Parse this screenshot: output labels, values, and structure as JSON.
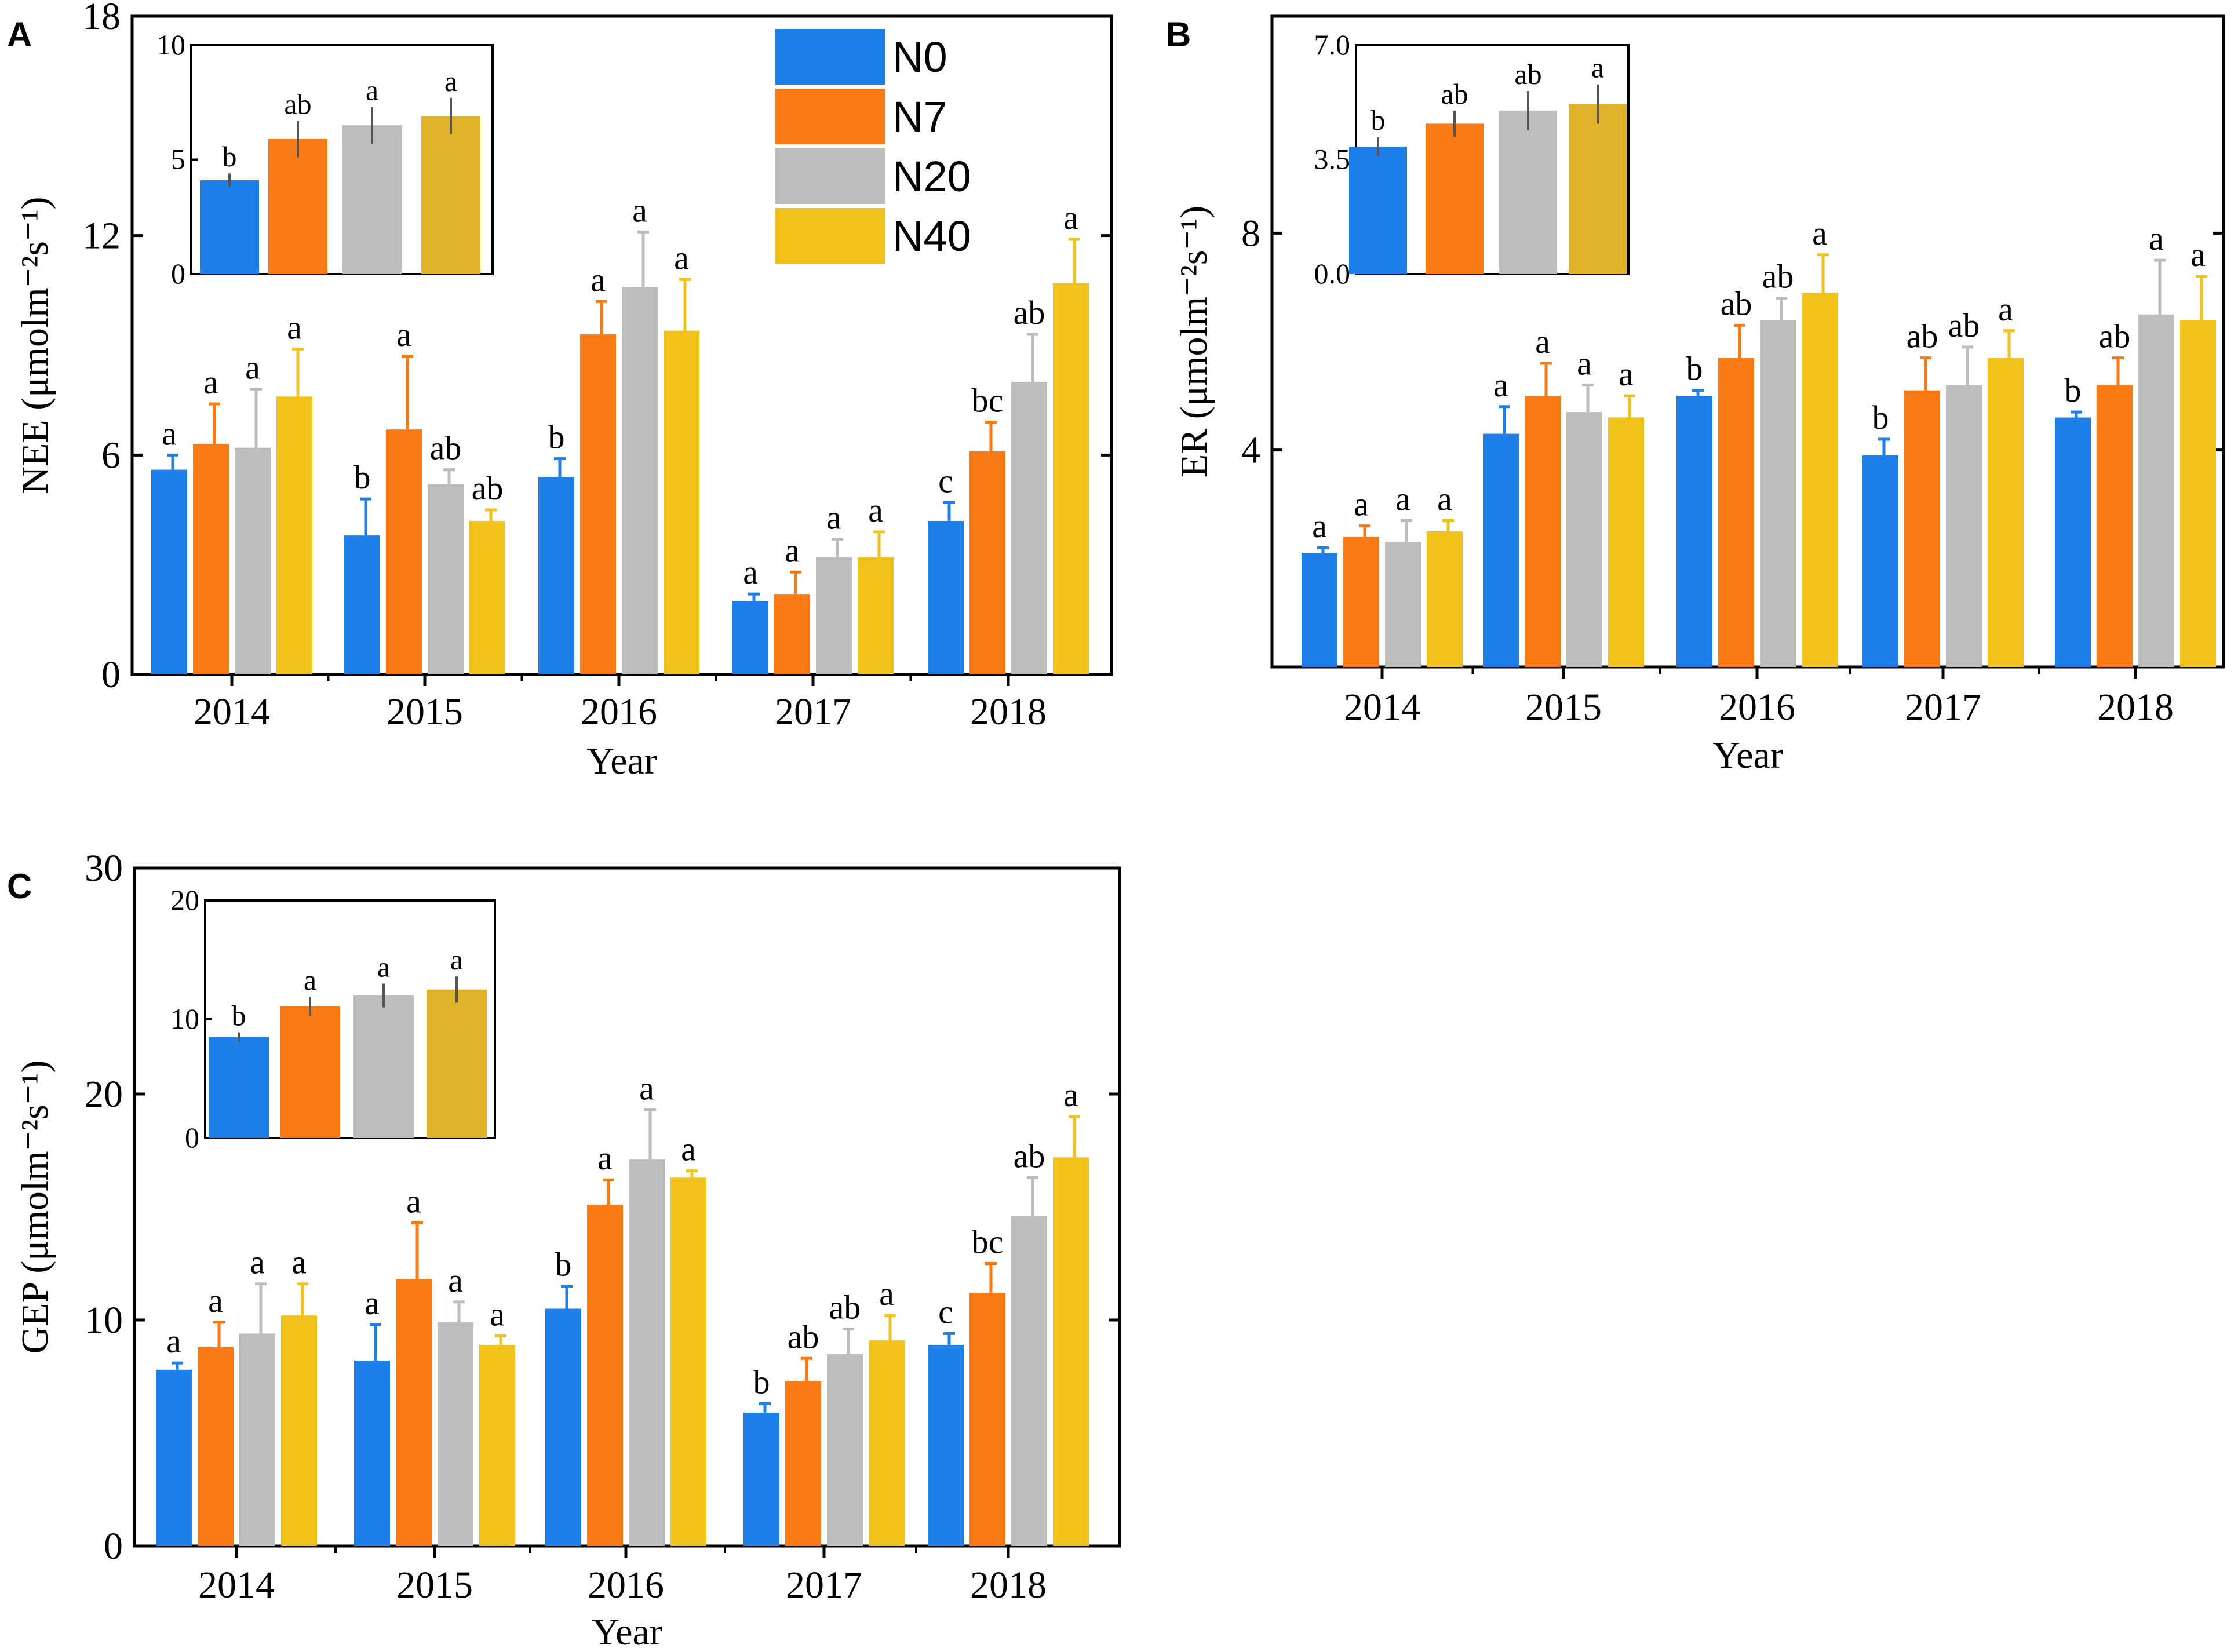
{
  "colors": {
    "N0": "#1f7fe8",
    "N7": "#f97a14",
    "N20": "#bdbdbd",
    "N40": "#f1c21b",
    "N40_inset": "#e0b12a"
  },
  "legend": [
    "N0",
    "N7",
    "N20",
    "N40"
  ],
  "chart_data": [
    {
      "panel": "A",
      "type": "bar",
      "title": "",
      "xlabel": "Year",
      "ylabel": "NEE (μmolm⁻²s⁻¹)",
      "ylim": [
        0,
        18
      ],
      "yticks": [
        "0",
        "6",
        "12",
        "18"
      ],
      "categories": [
        "2014",
        "2015",
        "2016",
        "2017",
        "2018"
      ],
      "series": [
        {
          "name": "N0",
          "values": [
            5.6,
            3.8,
            5.4,
            2.0,
            4.2
          ],
          "errors": [
            0.4,
            1.0,
            0.5,
            0.2,
            0.5
          ],
          "labels": [
            "a",
            "b",
            "b",
            "a",
            "c"
          ]
        },
        {
          "name": "N7",
          "values": [
            6.3,
            6.7,
            9.3,
            2.2,
            6.1
          ],
          "errors": [
            1.1,
            2.0,
            0.9,
            0.6,
            0.8
          ],
          "labels": [
            "a",
            "a",
            "a",
            "a",
            "bc"
          ]
        },
        {
          "name": "N20",
          "values": [
            6.2,
            5.2,
            10.6,
            3.2,
            8.0
          ],
          "errors": [
            1.6,
            0.4,
            1.5,
            0.5,
            1.3
          ],
          "labels": [
            "a",
            "ab",
            "a",
            "a",
            "ab"
          ]
        },
        {
          "name": "N40",
          "values": [
            7.6,
            4.2,
            9.4,
            3.2,
            10.7
          ],
          "errors": [
            1.3,
            0.3,
            1.4,
            0.7,
            1.2
          ],
          "labels": [
            "a",
            "ab",
            "a",
            "a",
            "a"
          ]
        }
      ],
      "inset": {
        "ylim": [
          0,
          10
        ],
        "yticks": [
          "0",
          "5",
          "10"
        ],
        "values": [
          4.1,
          5.9,
          6.5,
          6.9
        ],
        "errors": [
          0.3,
          0.8,
          0.8,
          0.8
        ],
        "labels": [
          "b",
          "ab",
          "a",
          "a"
        ]
      }
    },
    {
      "panel": "B",
      "type": "bar",
      "title": "",
      "xlabel": "Year",
      "ylabel": "ER (μmolm⁻²s⁻¹)",
      "ylim": [
        0,
        12
      ],
      "yticks": [
        "4",
        "8"
      ],
      "categories": [
        "2014",
        "2015",
        "2016",
        "2017",
        "2018"
      ],
      "series": [
        {
          "name": "N0",
          "values": [
            2.1,
            4.3,
            5.0,
            3.9,
            4.6
          ],
          "errors": [
            0.1,
            0.5,
            0.1,
            0.3,
            0.1
          ],
          "labels": [
            "a",
            "a",
            "b",
            "b",
            "b"
          ]
        },
        {
          "name": "N7",
          "values": [
            2.4,
            5.0,
            5.7,
            5.1,
            5.2
          ],
          "errors": [
            0.2,
            0.6,
            0.6,
            0.6,
            0.5
          ],
          "labels": [
            "a",
            "a",
            "ab",
            "ab",
            "ab"
          ]
        },
        {
          "name": "N20",
          "values": [
            2.3,
            4.7,
            6.4,
            5.2,
            6.5
          ],
          "errors": [
            0.4,
            0.5,
            0.4,
            0.7,
            1.0
          ],
          "labels": [
            "a",
            "a",
            "ab",
            "ab",
            "a"
          ]
        },
        {
          "name": "N40",
          "values": [
            2.5,
            4.6,
            6.9,
            5.7,
            6.4
          ],
          "errors": [
            0.2,
            0.4,
            0.7,
            0.5,
            0.8
          ],
          "labels": [
            "a",
            "a",
            "a",
            "a",
            "a"
          ]
        }
      ],
      "inset": {
        "ylim": [
          0,
          7
        ],
        "yticks": [
          "0.0",
          "3.5",
          "7.0"
        ],
        "values": [
          3.9,
          4.6,
          5.0,
          5.2
        ],
        "errors": [
          0.3,
          0.4,
          0.6,
          0.6
        ],
        "labels": [
          "b",
          "ab",
          "ab",
          "a"
        ]
      }
    },
    {
      "panel": "C",
      "type": "bar",
      "title": "",
      "xlabel": "Year",
      "ylabel": "GEP (μmolm⁻²s⁻¹)",
      "ylim": [
        0,
        30
      ],
      "yticks": [
        "0",
        "10",
        "20",
        "30"
      ],
      "categories": [
        "2014",
        "2015",
        "2016",
        "2017",
        "2018"
      ],
      "series": [
        {
          "name": "N0",
          "values": [
            7.8,
            8.2,
            10.5,
            5.9,
            8.9
          ],
          "errors": [
            0.3,
            1.6,
            1.0,
            0.4,
            0.5
          ],
          "labels": [
            "a",
            "a",
            "b",
            "b",
            "c"
          ]
        },
        {
          "name": "N7",
          "values": [
            8.8,
            11.8,
            15.1,
            7.3,
            11.2
          ],
          "errors": [
            1.1,
            2.5,
            1.1,
            1.0,
            1.3
          ],
          "labels": [
            "a",
            "a",
            "a",
            "ab",
            "bc"
          ]
        },
        {
          "name": "N20",
          "values": [
            9.4,
            9.9,
            17.1,
            8.5,
            14.6
          ],
          "errors": [
            2.2,
            0.9,
            2.2,
            1.1,
            1.7
          ],
          "labels": [
            "a",
            "a",
            "a",
            "ab",
            "ab"
          ]
        },
        {
          "name": "N40",
          "values": [
            10.2,
            8.9,
            16.3,
            9.1,
            17.2
          ],
          "errors": [
            1.4,
            0.4,
            0.3,
            1.1,
            1.8
          ],
          "labels": [
            "a",
            "a",
            "a",
            "a",
            "a"
          ]
        }
      ],
      "inset": {
        "ylim": [
          0,
          20
        ],
        "yticks": [
          "0",
          "10",
          "20"
        ],
        "values": [
          8.5,
          11.1,
          12.0,
          12.5
        ],
        "errors": [
          0.4,
          0.8,
          1.0,
          1.1
        ],
        "labels": [
          "b",
          "a",
          "a",
          "a"
        ]
      }
    }
  ]
}
